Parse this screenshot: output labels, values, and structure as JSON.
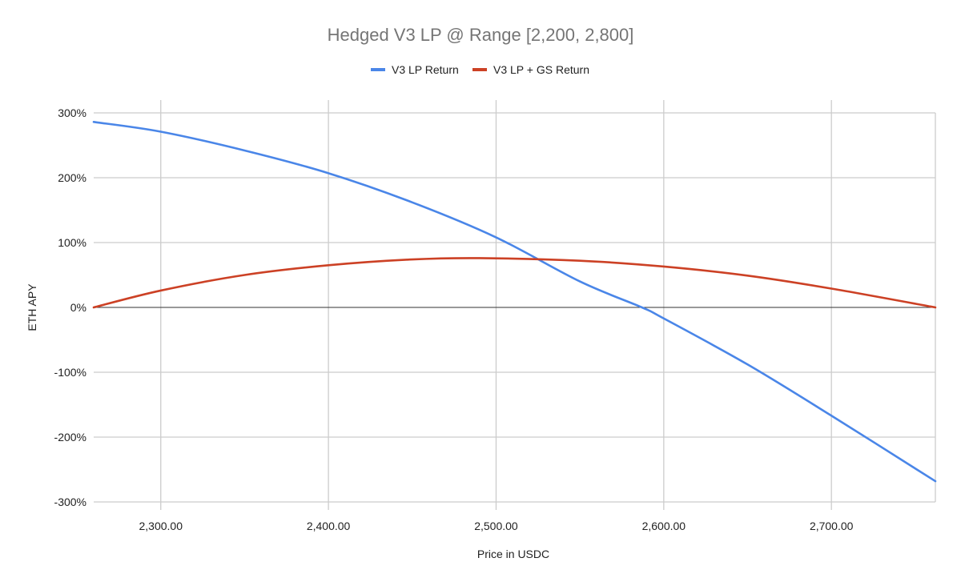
{
  "chart_data": {
    "type": "line",
    "title": "Hedged V3 LP @ Range [2,200, 2,800]",
    "xlabel": "Price in USDC",
    "ylabel": "ETH APY",
    "xlim": [
      2260,
      2762
    ],
    "ylim": [
      -300,
      300
    ],
    "x_ticks": [
      2300,
      2400,
      2500,
      2600,
      2700
    ],
    "x_tick_labels": [
      "2,300.00",
      "2,400.00",
      "2,500.00",
      "2,600.00",
      "2,700.00"
    ],
    "y_ticks": [
      300,
      200,
      100,
      0,
      -100,
      -200,
      -300
    ],
    "y_tick_labels": [
      "300%",
      "200%",
      "100%",
      "0%",
      "-100%",
      "-200%",
      "-300%"
    ],
    "grid": true,
    "legend_position": "top",
    "series": [
      {
        "name": "V3 LP Return",
        "color": "#4a86e8",
        "x": [
          2260,
          2300,
          2350,
          2400,
          2450,
          2500,
          2550,
          2587,
          2600,
          2650,
          2700,
          2762
        ],
        "y": [
          286,
          271,
          242,
          207,
          162,
          108,
          40,
          0,
          -17,
          -88,
          -167,
          -268
        ]
      },
      {
        "name": "V3 LP + GS Return",
        "color": "#cc4125",
        "x": [
          2260,
          2300,
          2350,
          2400,
          2450,
          2490,
          2550,
          2600,
          2650,
          2700,
          2762
        ],
        "y": [
          0,
          26,
          50,
          65,
          74,
          76,
          72,
          63,
          49,
          29,
          0
        ]
      }
    ]
  }
}
